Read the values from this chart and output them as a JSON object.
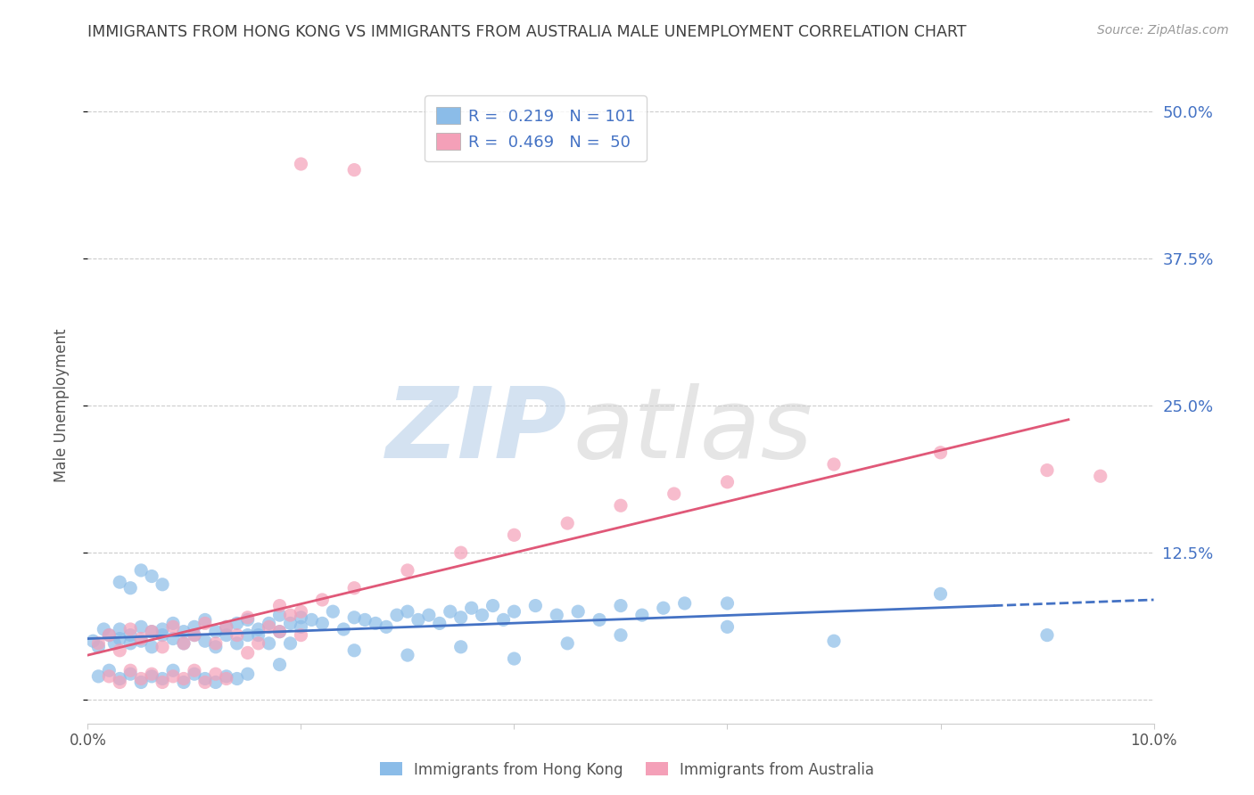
{
  "title": "IMMIGRANTS FROM HONG KONG VS IMMIGRANTS FROM AUSTRALIA MALE UNEMPLOYMENT CORRELATION CHART",
  "source": "Source: ZipAtlas.com",
  "ylabel": "Male Unemployment",
  "watermark_zip": "ZIP",
  "watermark_atlas": "atlas",
  "legend_r1": "R =  0.219   N = 101",
  "legend_r2": "R =  0.469   N =  50",
  "xmin": 0.0,
  "xmax": 0.1,
  "ymin": -0.02,
  "ymax": 0.52,
  "yticks": [
    0.0,
    0.125,
    0.25,
    0.375,
    0.5
  ],
  "ytick_labels": [
    "",
    "12.5%",
    "25.0%",
    "37.5%",
    "50.0%"
  ],
  "xticks": [
    0.0,
    0.02,
    0.04,
    0.06,
    0.08,
    0.1
  ],
  "xtick_labels": [
    "0.0%",
    "",
    "",
    "",
    "",
    "10.0%"
  ],
  "color_hk": "#8bbce8",
  "color_au": "#f4a0b8",
  "line_color_hk": "#4472c4",
  "line_color_au": "#e05878",
  "background": "#ffffff",
  "grid_color": "#cccccc",
  "title_color": "#404040",
  "axis_label_color": "#4472c4",
  "hk_scatter_x": [
    0.0005,
    0.001,
    0.0015,
    0.002,
    0.0025,
    0.003,
    0.003,
    0.004,
    0.004,
    0.005,
    0.005,
    0.006,
    0.006,
    0.007,
    0.007,
    0.008,
    0.008,
    0.009,
    0.009,
    0.01,
    0.01,
    0.011,
    0.011,
    0.012,
    0.012,
    0.013,
    0.013,
    0.014,
    0.014,
    0.015,
    0.015,
    0.016,
    0.016,
    0.017,
    0.017,
    0.018,
    0.018,
    0.019,
    0.019,
    0.02,
    0.02,
    0.021,
    0.022,
    0.023,
    0.024,
    0.025,
    0.026,
    0.027,
    0.028,
    0.029,
    0.03,
    0.031,
    0.032,
    0.033,
    0.034,
    0.035,
    0.036,
    0.037,
    0.038,
    0.039,
    0.04,
    0.042,
    0.044,
    0.046,
    0.048,
    0.05,
    0.052,
    0.054,
    0.056,
    0.06,
    0.001,
    0.002,
    0.003,
    0.004,
    0.005,
    0.006,
    0.007,
    0.008,
    0.009,
    0.01,
    0.011,
    0.012,
    0.013,
    0.014,
    0.015,
    0.003,
    0.004,
    0.005,
    0.006,
    0.007,
    0.018,
    0.025,
    0.03,
    0.035,
    0.04,
    0.045,
    0.05,
    0.06,
    0.07,
    0.08,
    0.09
  ],
  "hk_scatter_y": [
    0.05,
    0.045,
    0.06,
    0.055,
    0.048,
    0.052,
    0.06,
    0.055,
    0.048,
    0.062,
    0.05,
    0.058,
    0.045,
    0.055,
    0.06,
    0.052,
    0.065,
    0.048,
    0.058,
    0.055,
    0.062,
    0.05,
    0.068,
    0.045,
    0.058,
    0.055,
    0.062,
    0.048,
    0.065,
    0.055,
    0.068,
    0.06,
    0.055,
    0.065,
    0.048,
    0.072,
    0.058,
    0.065,
    0.048,
    0.062,
    0.07,
    0.068,
    0.065,
    0.075,
    0.06,
    0.07,
    0.068,
    0.065,
    0.062,
    0.072,
    0.075,
    0.068,
    0.072,
    0.065,
    0.075,
    0.07,
    0.078,
    0.072,
    0.08,
    0.068,
    0.075,
    0.08,
    0.072,
    0.075,
    0.068,
    0.08,
    0.072,
    0.078,
    0.082,
    0.082,
    0.02,
    0.025,
    0.018,
    0.022,
    0.015,
    0.02,
    0.018,
    0.025,
    0.015,
    0.022,
    0.018,
    0.015,
    0.02,
    0.018,
    0.022,
    0.1,
    0.095,
    0.11,
    0.105,
    0.098,
    0.03,
    0.042,
    0.038,
    0.045,
    0.035,
    0.048,
    0.055,
    0.062,
    0.05,
    0.09,
    0.055
  ],
  "au_scatter_x": [
    0.001,
    0.002,
    0.003,
    0.004,
    0.005,
    0.006,
    0.007,
    0.008,
    0.009,
    0.01,
    0.011,
    0.012,
    0.013,
    0.014,
    0.015,
    0.016,
    0.017,
    0.018,
    0.019,
    0.02,
    0.002,
    0.003,
    0.004,
    0.005,
    0.006,
    0.007,
    0.008,
    0.009,
    0.01,
    0.011,
    0.012,
    0.013,
    0.015,
    0.018,
    0.02,
    0.022,
    0.025,
    0.03,
    0.035,
    0.04,
    0.045,
    0.05,
    0.055,
    0.06,
    0.07,
    0.08,
    0.09,
    0.095,
    0.02,
    0.025
  ],
  "au_scatter_y": [
    0.048,
    0.055,
    0.042,
    0.06,
    0.052,
    0.058,
    0.045,
    0.062,
    0.048,
    0.055,
    0.065,
    0.048,
    0.062,
    0.055,
    0.07,
    0.048,
    0.062,
    0.058,
    0.072,
    0.055,
    0.02,
    0.015,
    0.025,
    0.018,
    0.022,
    0.015,
    0.02,
    0.018,
    0.025,
    0.015,
    0.022,
    0.018,
    0.04,
    0.08,
    0.075,
    0.085,
    0.095,
    0.11,
    0.125,
    0.14,
    0.15,
    0.165,
    0.175,
    0.185,
    0.2,
    0.21,
    0.195,
    0.19,
    0.455,
    0.45
  ],
  "hk_line_x": [
    0.0,
    0.085,
    0.1
  ],
  "hk_line_y": [
    0.052,
    0.08,
    0.085
  ],
  "hk_line_solid_end": 0.085,
  "au_line_x": [
    0.0,
    0.092
  ],
  "au_line_y": [
    0.038,
    0.238
  ]
}
